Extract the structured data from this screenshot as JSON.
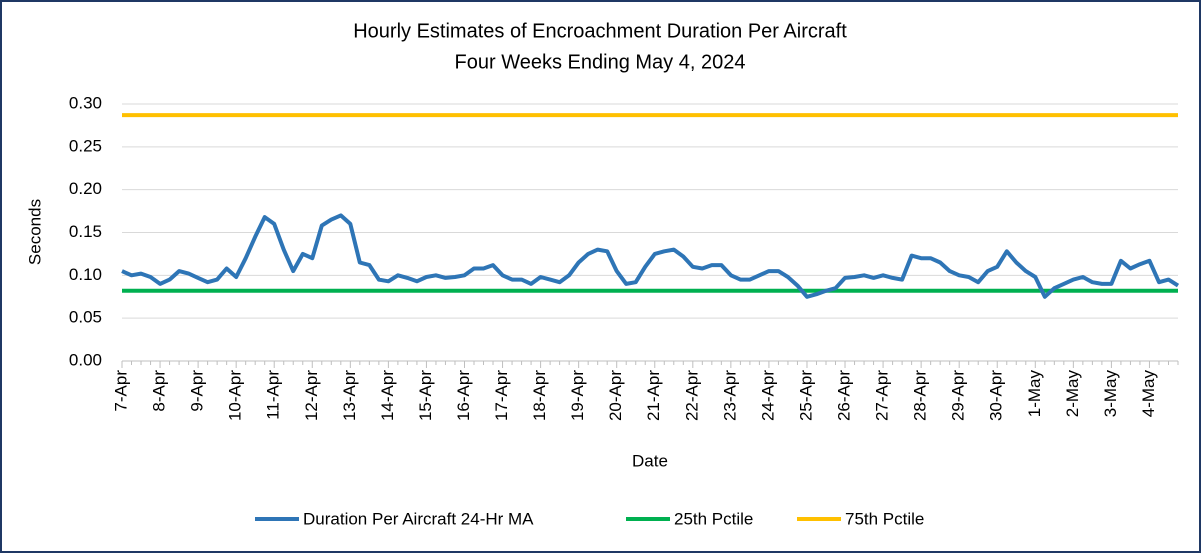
{
  "chart_data": {
    "type": "line",
    "title": "Hourly Estimates of Encroachment Duration Per Aircraft",
    "subtitle": "Four Weeks Ending May 4, 2024",
    "x_label": "Date",
    "y_label": "Seconds",
    "categories": [
      "7-Apr",
      null,
      null,
      null,
      "8-Apr",
      null,
      null,
      null,
      "9-Apr",
      null,
      null,
      null,
      "10-Apr",
      null,
      null,
      null,
      "11-Apr",
      null,
      null,
      null,
      "12-Apr",
      null,
      null,
      null,
      "13-Apr",
      null,
      null,
      null,
      "14-Apr",
      null,
      null,
      null,
      "15-Apr",
      null,
      null,
      null,
      "16-Apr",
      null,
      null,
      null,
      "17-Apr",
      null,
      null,
      null,
      "18-Apr",
      null,
      null,
      null,
      "19-Apr",
      null,
      null,
      null,
      "20-Apr",
      null,
      null,
      null,
      "21-Apr",
      null,
      null,
      null,
      "22-Apr",
      null,
      null,
      null,
      "23-Apr",
      null,
      null,
      null,
      "24-Apr",
      null,
      null,
      null,
      "25-Apr",
      null,
      null,
      null,
      "26-Apr",
      null,
      null,
      null,
      "27-Apr",
      null,
      null,
      null,
      "28-Apr",
      null,
      null,
      null,
      "29-Apr",
      null,
      null,
      null,
      "30-Apr",
      null,
      null,
      null,
      "1-May",
      null,
      null,
      null,
      "2-May",
      null,
      null,
      null,
      "3-May",
      null,
      null,
      null,
      "4-May",
      null,
      null,
      null
    ],
    "series": [
      {
        "name": "Duration Per Aircraft 24-Hr MA",
        "color": "#2e75b6",
        "values": [
          0.105,
          0.1,
          0.102,
          0.098,
          0.09,
          0.095,
          0.105,
          0.102,
          0.097,
          0.092,
          0.095,
          0.108,
          0.098,
          0.12,
          0.145,
          0.168,
          0.16,
          0.13,
          0.105,
          0.125,
          0.12,
          0.158,
          0.165,
          0.17,
          0.16,
          0.115,
          0.112,
          0.095,
          0.093,
          0.1,
          0.097,
          0.093,
          0.098,
          0.1,
          0.097,
          0.098,
          0.1,
          0.108,
          0.108,
          0.112,
          0.1,
          0.095,
          0.095,
          0.09,
          0.098,
          0.095,
          0.092,
          0.1,
          0.115,
          0.125,
          0.13,
          0.128,
          0.105,
          0.09,
          0.092,
          0.11,
          0.125,
          0.128,
          0.13,
          0.122,
          0.11,
          0.108,
          0.112,
          0.112,
          0.1,
          0.095,
          0.095,
          0.1,
          0.105,
          0.105,
          0.098,
          0.088,
          0.075,
          0.078,
          0.082,
          0.085,
          0.097,
          0.098,
          0.1,
          0.097,
          0.1,
          0.097,
          0.095,
          0.123,
          0.12,
          0.12,
          0.115,
          0.105,
          0.1,
          0.098,
          0.092,
          0.105,
          0.11,
          0.128,
          0.115,
          0.105,
          0.098,
          0.075,
          0.085,
          0.09,
          0.095,
          0.098,
          0.092,
          0.09,
          0.09,
          0.117,
          0.108,
          0.113,
          0.117,
          0.092,
          0.095,
          0.088
        ]
      }
    ],
    "hlines": [
      {
        "name": "25th Pctile",
        "color": "#00b050",
        "value": 0.082
      },
      {
        "name": "75th Pctile",
        "color": "#ffc000",
        "value": 0.287
      }
    ],
    "ylim": [
      0,
      0.3
    ],
    "yticks": [
      {
        "value": 0,
        "label": "0.00"
      },
      {
        "value": 0.05,
        "label": "0.05"
      },
      {
        "value": 0.1,
        "label": "0.10"
      },
      {
        "value": 0.15,
        "label": "0.15"
      },
      {
        "value": 0.2,
        "label": "0.20"
      },
      {
        "value": 0.25,
        "label": "0.25"
      },
      {
        "value": 0.3,
        "label": "0.30"
      }
    ],
    "grid": true
  }
}
